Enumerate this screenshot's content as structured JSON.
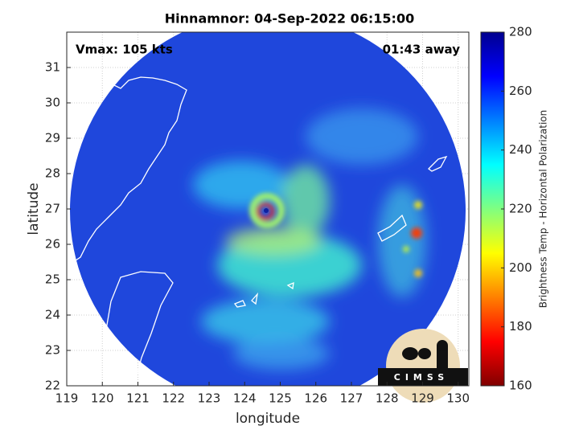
{
  "chart_data": {
    "type": "map",
    "title": "Hinnamnor: 04-Sep-2022 06:15:00",
    "xlabel": "longitude",
    "ylabel": "latitude",
    "xlim": [
      119,
      130.3
    ],
    "ylim": [
      22,
      32
    ],
    "xticks": [
      119,
      120,
      121,
      122,
      123,
      124,
      125,
      126,
      127,
      128,
      129,
      130
    ],
    "yticks": [
      22,
      23,
      24,
      25,
      26,
      27,
      28,
      29,
      30,
      31
    ],
    "grid": true,
    "annotations": [
      "Vmax: 105 kts",
      "01:43 away"
    ],
    "logo_text": "CIMSS",
    "colorbar": {
      "label": "Brightness Temp - Horizontal Polarization",
      "lim": [
        160,
        280
      ],
      "ticks": [
        160,
        180,
        200,
        220,
        240,
        260,
        280
      ],
      "colormap": "jet"
    }
  }
}
